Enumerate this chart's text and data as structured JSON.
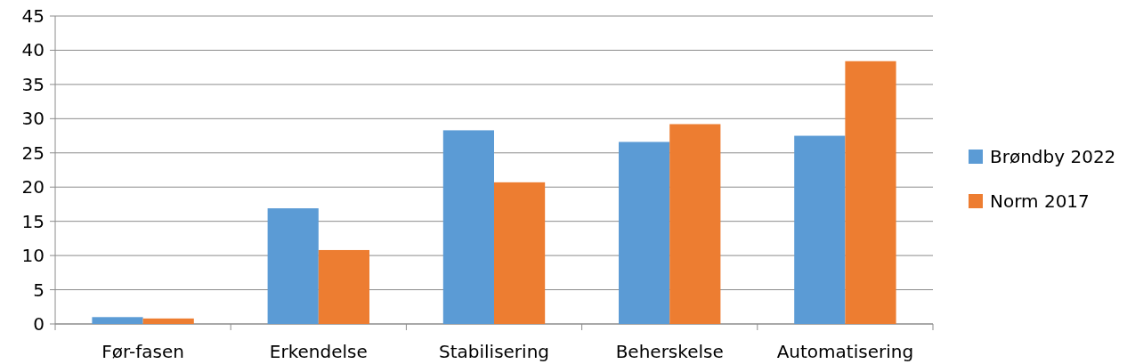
{
  "chart_data": {
    "type": "bar",
    "categories": [
      "Før-fasen",
      "Erkendelse",
      "Stabilisering",
      "Beherskelse",
      "Automatisering"
    ],
    "series": [
      {
        "name": "Brøndby 2022",
        "color": "#5b9bd5",
        "values": [
          1.0,
          16.9,
          28.3,
          26.6,
          27.5
        ]
      },
      {
        "name": "Norm 2017",
        "color": "#ed7d31",
        "values": [
          0.8,
          10.8,
          20.7,
          29.2,
          38.4
        ]
      }
    ],
    "ylim": [
      0,
      45
    ],
    "yticks": [
      0,
      5,
      10,
      15,
      20,
      25,
      30,
      35,
      40,
      45
    ],
    "grid": "y",
    "legend": "right"
  }
}
